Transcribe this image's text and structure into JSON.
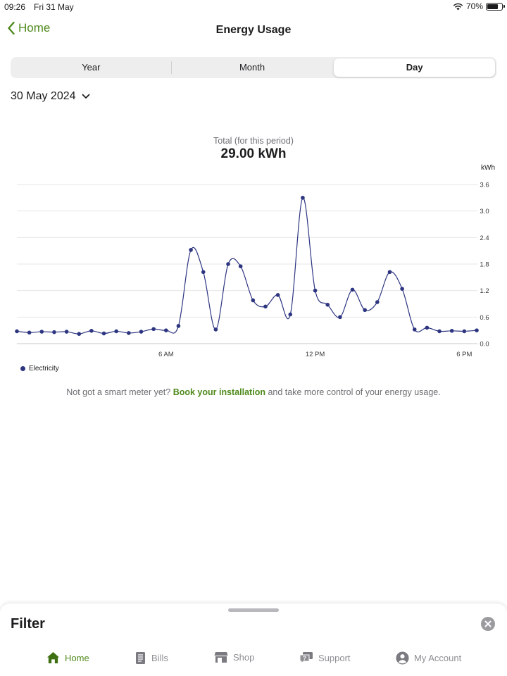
{
  "status_bar": {
    "time": "09:26",
    "date": "Fri 31 May",
    "battery": "70%"
  },
  "nav": {
    "back_label": "Home",
    "title": "Energy Usage"
  },
  "period_tabs": [
    {
      "label": "Year",
      "selected": false
    },
    {
      "label": "Month",
      "selected": false
    },
    {
      "label": "Day",
      "selected": true
    }
  ],
  "date_selector": {
    "value": "30 May 2024"
  },
  "summary": {
    "label": "Total (for this period)",
    "value": "29.00 kWh"
  },
  "chart_data": {
    "type": "line",
    "ylabel": "kWh",
    "ylim": [
      0,
      3.6
    ],
    "yticks": [
      "3.6",
      "3.0",
      "2.4",
      "1.8",
      "1.2",
      "0.6",
      "0.0"
    ],
    "xticks": [
      {
        "label": "6 AM",
        "index": 12
      },
      {
        "label": "12 PM",
        "index": 24
      },
      {
        "label": "6 PM",
        "index": 36
      }
    ],
    "grid": true,
    "legend_position": "bottom-left",
    "series": [
      {
        "name": "Electricity",
        "color": "#2d3580",
        "values": [
          0.28,
          0.25,
          0.27,
          0.26,
          0.27,
          0.22,
          0.29,
          0.23,
          0.28,
          0.24,
          0.27,
          0.33,
          0.3,
          0.4,
          2.12,
          1.62,
          0.32,
          1.8,
          1.75,
          0.98,
          0.84,
          1.1,
          0.66,
          3.3,
          1.2,
          0.88,
          0.6,
          1.22,
          0.76,
          0.94,
          1.62,
          1.24,
          0.32,
          0.36,
          0.28,
          0.29,
          0.28,
          0.3
        ]
      }
    ]
  },
  "legend": {
    "electricity": "Electricity"
  },
  "promo": {
    "prefix": "Not got a smart meter yet?",
    "link": "Book your installation",
    "suffix": "and take more control of your energy usage."
  },
  "filter_sheet": {
    "title": "Filter"
  },
  "tab_bar": [
    {
      "label": "Home",
      "icon": "home-icon",
      "active": true
    },
    {
      "label": "Bills",
      "icon": "bills-icon",
      "active": false
    },
    {
      "label": "Shop",
      "icon": "shop-icon",
      "active": false
    },
    {
      "label": "Support",
      "icon": "support-icon",
      "active": false
    },
    {
      "label": "My Account",
      "icon": "account-icon",
      "active": false
    }
  ],
  "colors": {
    "accent": "#4f8a1c",
    "series": "#2d3580",
    "segment_bg": "#eeeeef"
  }
}
